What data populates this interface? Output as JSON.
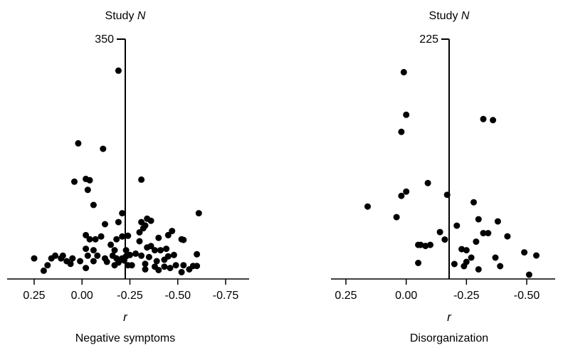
{
  "chart_data": [
    {
      "type": "scatter",
      "title": "Negative symptoms",
      "xlabel": "r",
      "ylabel": "Study N",
      "xlim": [
        0.35,
        -0.8
      ],
      "ylim": [
        0,
        350
      ],
      "x_ticks": [
        0.25,
        0.0,
        -0.25,
        -0.5,
        -0.75
      ],
      "x_tick_labels": [
        "0.25",
        "0.00",
        "-0.25",
        "-0.50",
        "-0.75"
      ],
      "y_tick_labels": [
        "350"
      ],
      "reference_line_x": -0.21,
      "points": [
        {
          "x": -0.19,
          "y": 304
        },
        {
          "x": 0.02,
          "y": 198
        },
        {
          "x": -0.11,
          "y": 190
        },
        {
          "x": -0.31,
          "y": 145
        },
        {
          "x": 0.04,
          "y": 142
        },
        {
          "x": -0.02,
          "y": 146
        },
        {
          "x": -0.04,
          "y": 144
        },
        {
          "x": -0.03,
          "y": 130
        },
        {
          "x": -0.06,
          "y": 108
        },
        {
          "x": -0.21,
          "y": 96
        },
        {
          "x": -0.61,
          "y": 96
        },
        {
          "x": -0.34,
          "y": 88
        },
        {
          "x": -0.19,
          "y": 83
        },
        {
          "x": -0.31,
          "y": 83
        },
        {
          "x": -0.36,
          "y": 85
        },
        {
          "x": -0.33,
          "y": 78
        },
        {
          "x": -0.12,
          "y": 80
        },
        {
          "x": -0.32,
          "y": 74
        },
        {
          "x": -0.3,
          "y": 68
        },
        {
          "x": -0.45,
          "y": 64
        },
        {
          "x": -0.47,
          "y": 70
        },
        {
          "x": -0.4,
          "y": 60
        },
        {
          "x": -0.1,
          "y": 62
        },
        {
          "x": -0.21,
          "y": 62
        },
        {
          "x": -0.24,
          "y": 63
        },
        {
          "x": -0.52,
          "y": 58
        },
        {
          "x": -0.53,
          "y": 57
        },
        {
          "x": -0.02,
          "y": 64
        },
        {
          "x": -0.07,
          "y": 58
        },
        {
          "x": -0.04,
          "y": 58
        },
        {
          "x": -0.18,
          "y": 58
        },
        {
          "x": -0.3,
          "y": 55
        },
        {
          "x": -0.15,
          "y": 50
        },
        {
          "x": -0.36,
          "y": 48
        },
        {
          "x": -0.34,
          "y": 46
        },
        {
          "x": -0.41,
          "y": 42
        },
        {
          "x": -0.38,
          "y": 42
        },
        {
          "x": -0.44,
          "y": 44
        },
        {
          "x": -0.23,
          "y": 42
        },
        {
          "x": -0.17,
          "y": 42
        },
        {
          "x": -0.06,
          "y": 42
        },
        {
          "x": -0.02,
          "y": 44
        },
        {
          "x": 0.1,
          "y": 34
        },
        {
          "x": 0.11,
          "y": 30
        },
        {
          "x": 0.14,
          "y": 34
        },
        {
          "x": 0.05,
          "y": 30
        },
        {
          "x": 0.01,
          "y": 26
        },
        {
          "x": -0.03,
          "y": 34
        },
        {
          "x": -0.08,
          "y": 34
        },
        {
          "x": -0.12,
          "y": 30
        },
        {
          "x": -0.16,
          "y": 34
        },
        {
          "x": -0.18,
          "y": 30
        },
        {
          "x": -0.21,
          "y": 30
        },
        {
          "x": -0.23,
          "y": 33
        },
        {
          "x": -0.25,
          "y": 35
        },
        {
          "x": -0.28,
          "y": 37
        },
        {
          "x": -0.31,
          "y": 34
        },
        {
          "x": -0.35,
          "y": 32
        },
        {
          "x": -0.39,
          "y": 26
        },
        {
          "x": -0.43,
          "y": 28
        },
        {
          "x": -0.45,
          "y": 33
        },
        {
          "x": -0.48,
          "y": 35
        },
        {
          "x": -0.6,
          "y": 36
        },
        {
          "x": 0.25,
          "y": 30
        },
        {
          "x": 0.16,
          "y": 30
        },
        {
          "x": 0.06,
          "y": 22
        },
        {
          "x": 0.08,
          "y": 26
        },
        {
          "x": -0.06,
          "y": 26
        },
        {
          "x": -0.13,
          "y": 25
        },
        {
          "x": -0.02,
          "y": 16
        },
        {
          "x": -0.17,
          "y": 20
        },
        {
          "x": -0.19,
          "y": 24
        },
        {
          "x": -0.22,
          "y": 27
        },
        {
          "x": -0.24,
          "y": 20
        },
        {
          "x": -0.26,
          "y": 20
        },
        {
          "x": -0.33,
          "y": 22
        },
        {
          "x": -0.38,
          "y": 18
        },
        {
          "x": -0.43,
          "y": 18
        },
        {
          "x": -0.46,
          "y": 16
        },
        {
          "x": -0.49,
          "y": 20
        },
        {
          "x": -0.53,
          "y": 20
        },
        {
          "x": -0.56,
          "y": 14
        },
        {
          "x": -0.58,
          "y": 19
        },
        {
          "x": -0.6,
          "y": 19
        },
        {
          "x": 0.18,
          "y": 20
        },
        {
          "x": 0.2,
          "y": 12
        },
        {
          "x": -0.33,
          "y": 14
        },
        {
          "x": -0.4,
          "y": 13
        },
        {
          "x": -0.52,
          "y": 10
        }
      ]
    },
    {
      "type": "scatter",
      "title": "Disorganization",
      "xlabel": "r",
      "ylabel": "Study N",
      "xlim": [
        0.35,
        -0.6
      ],
      "ylim": [
        0,
        225
      ],
      "x_ticks": [
        0.25,
        0.0,
        -0.25,
        -0.5
      ],
      "x_tick_labels": [
        "0.25",
        "0.00",
        "-0.25",
        "-0.50"
      ],
      "y_tick_labels": [
        "225"
      ],
      "reference_line_x": -0.16,
      "points": [
        {
          "x": 0.01,
          "y": 194
        },
        {
          "x": 0.0,
          "y": 154
        },
        {
          "x": 0.02,
          "y": 138
        },
        {
          "x": -0.32,
          "y": 150
        },
        {
          "x": -0.36,
          "y": 149
        },
        {
          "x": -0.09,
          "y": 90
        },
        {
          "x": 0.0,
          "y": 82
        },
        {
          "x": 0.02,
          "y": 78
        },
        {
          "x": -0.17,
          "y": 79
        },
        {
          "x": -0.28,
          "y": 72
        },
        {
          "x": 0.16,
          "y": 68
        },
        {
          "x": 0.04,
          "y": 58
        },
        {
          "x": -0.3,
          "y": 56
        },
        {
          "x": -0.38,
          "y": 54
        },
        {
          "x": -0.21,
          "y": 50
        },
        {
          "x": -0.14,
          "y": 44
        },
        {
          "x": -0.32,
          "y": 43
        },
        {
          "x": -0.34,
          "y": 43
        },
        {
          "x": -0.42,
          "y": 40
        },
        {
          "x": -0.16,
          "y": 37
        },
        {
          "x": -0.29,
          "y": 35
        },
        {
          "x": -0.05,
          "y": 32
        },
        {
          "x": -0.06,
          "y": 32
        },
        {
          "x": -0.08,
          "y": 31
        },
        {
          "x": -0.1,
          "y": 32
        },
        {
          "x": -0.23,
          "y": 28
        },
        {
          "x": -0.25,
          "y": 27
        },
        {
          "x": -0.49,
          "y": 25
        },
        {
          "x": -0.54,
          "y": 22
        },
        {
          "x": -0.37,
          "y": 20
        },
        {
          "x": -0.05,
          "y": 15
        },
        {
          "x": -0.27,
          "y": 20
        },
        {
          "x": -0.2,
          "y": 14
        },
        {
          "x": -0.25,
          "y": 16
        },
        {
          "x": -0.24,
          "y": 12
        },
        {
          "x": -0.3,
          "y": 9
        },
        {
          "x": -0.39,
          "y": 12
        },
        {
          "x": -0.51,
          "y": 4
        }
      ]
    }
  ]
}
